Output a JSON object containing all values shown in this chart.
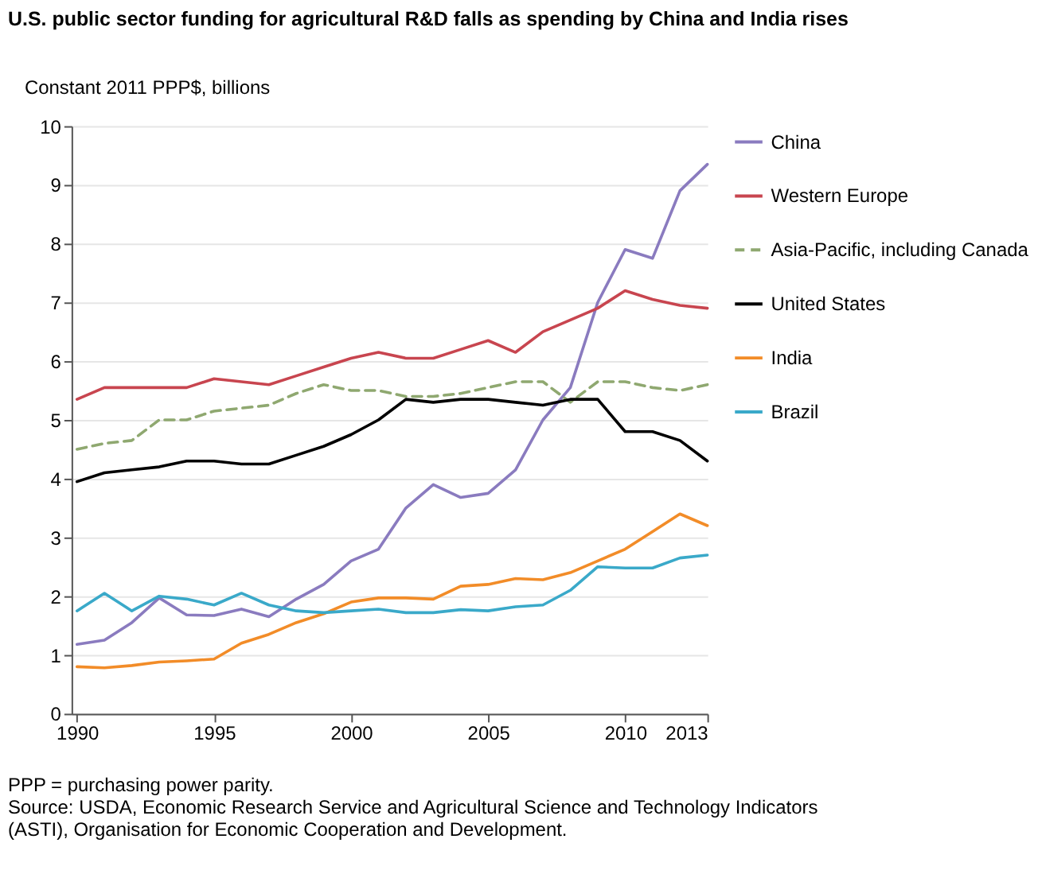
{
  "chart_data": {
    "type": "line",
    "title": "U.S. public sector funding for agricultural R&D falls as spending by China and India rises",
    "ylabel": "Constant 2011 PPP$, billions",
    "x": [
      1990,
      1991,
      1992,
      1993,
      1994,
      1995,
      1996,
      1997,
      1998,
      1999,
      2000,
      2001,
      2002,
      2003,
      2004,
      2005,
      2006,
      2007,
      2008,
      2009,
      2010,
      2011,
      2012,
      2013
    ],
    "xlim": [
      1989.8,
      2013
    ],
    "xticks": [
      1990,
      1995,
      2000,
      2005,
      2010,
      2013
    ],
    "ylim": [
      0,
      10
    ],
    "yticks": [
      0,
      1,
      2,
      3,
      4,
      5,
      6,
      7,
      8,
      9,
      10
    ],
    "grid": "y",
    "legend": "right",
    "marker": "none",
    "series": [
      {
        "name": "China",
        "color": "#8a7bbf",
        "line_style": "solid",
        "values": [
          1.18,
          1.25,
          1.55,
          1.97,
          1.68,
          1.67,
          1.78,
          1.65,
          1.95,
          2.2,
          2.6,
          2.8,
          3.5,
          3.9,
          3.68,
          3.75,
          4.15,
          5.0,
          5.55,
          7.0,
          7.9,
          7.75,
          8.9,
          9.35
        ]
      },
      {
        "name": "Western Europe",
        "color": "#c8454f",
        "line_style": "solid",
        "values": [
          5.35,
          5.55,
          5.55,
          5.55,
          5.55,
          5.7,
          5.65,
          5.6,
          5.75,
          5.9,
          6.05,
          6.15,
          6.05,
          6.05,
          6.2,
          6.35,
          6.15,
          6.5,
          6.7,
          6.9,
          7.2,
          7.05,
          6.95,
          6.9
        ]
      },
      {
        "name": "Asia-Pacific, including Canada",
        "color": "#8fa870",
        "line_style": "dashed",
        "values": [
          4.5,
          4.6,
          4.65,
          5.0,
          5.0,
          5.15,
          5.2,
          5.25,
          5.45,
          5.6,
          5.5,
          5.5,
          5.4,
          5.4,
          5.45,
          5.55,
          5.65,
          5.65,
          5.3,
          5.65,
          5.65,
          5.55,
          5.5,
          5.6
        ]
      },
      {
        "name": "United States",
        "color": "#000000",
        "line_style": "solid",
        "values": [
          3.95,
          4.1,
          4.15,
          4.2,
          4.3,
          4.3,
          4.25,
          4.25,
          4.4,
          4.55,
          4.75,
          5.0,
          5.35,
          5.3,
          5.35,
          5.35,
          5.3,
          5.25,
          5.35,
          5.35,
          4.8,
          4.8,
          4.65,
          4.3
        ]
      },
      {
        "name": "India",
        "color": "#f28c28",
        "line_style": "solid",
        "values": [
          0.8,
          0.78,
          0.82,
          0.88,
          0.9,
          0.93,
          1.2,
          1.35,
          1.55,
          1.7,
          1.9,
          1.97,
          1.97,
          1.95,
          2.17,
          2.2,
          2.3,
          2.28,
          2.4,
          2.6,
          2.8,
          3.1,
          3.4,
          3.2
        ]
      },
      {
        "name": "Brazil",
        "color": "#3aa9c9",
        "line_style": "solid",
        "values": [
          1.75,
          2.05,
          1.75,
          2.0,
          1.95,
          1.85,
          2.05,
          1.85,
          1.75,
          1.72,
          1.75,
          1.78,
          1.72,
          1.72,
          1.77,
          1.75,
          1.82,
          1.85,
          2.1,
          2.5,
          2.48,
          2.48,
          2.65,
          2.7
        ]
      }
    ],
    "annotations": [
      "PPP = purchasing power parity.",
      "Source: USDA, Economic Research Service and Agricultural Science and Technology Indicators (ASTI), Organisation for Economic Cooperation and Development."
    ]
  }
}
